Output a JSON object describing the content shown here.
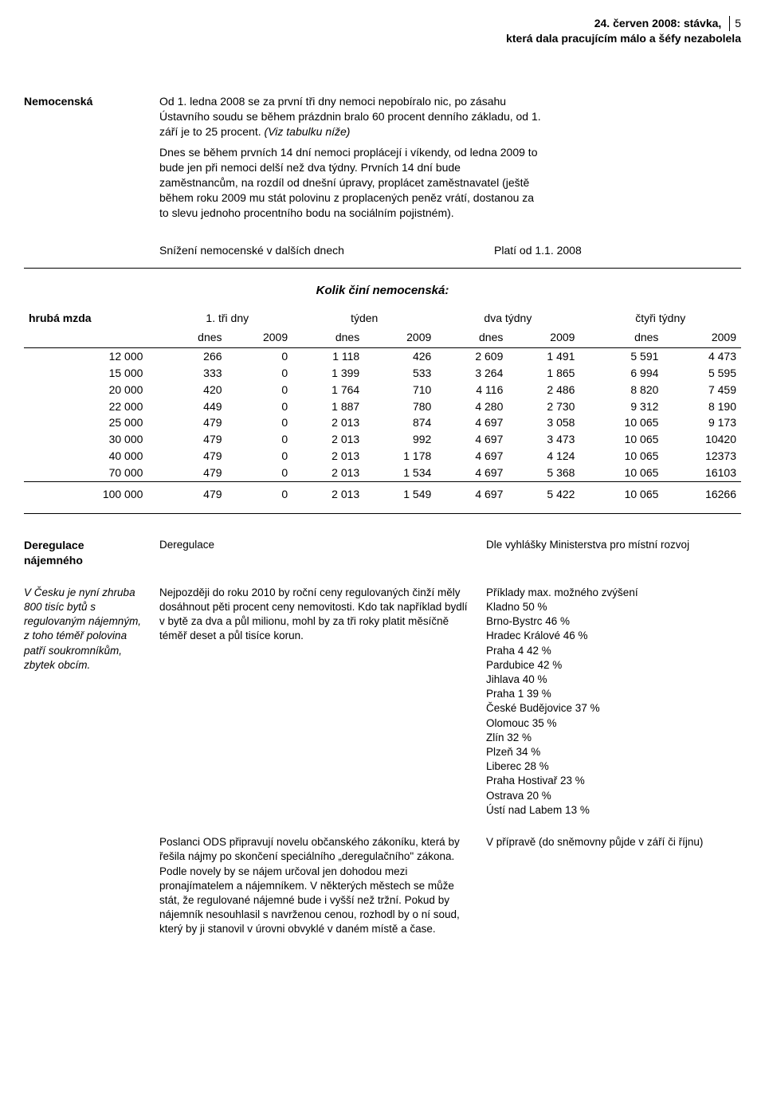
{
  "header": {
    "line1": "24. červen 2008: stávka,",
    "line2": "která dala pracujícím málo a šéfy nezabolela",
    "pageno": "5"
  },
  "nemocenska": {
    "label": "Nemocenská",
    "p1": "Od 1. ledna 2008 se za první tři dny nemoci nepobíralo nic, po zásahu Ústavního soudu se během prázdnin bralo 60 procent denního základu, od 1. září je to 25 procent. ",
    "p1_ital": "(Viz tabulku níže)",
    "p2": "Dnes se během prvních 14 dní nemoci proplácejí i víkendy, od ledna 2009 to bude jen při nemoci delší než dva týdny. Prvních 14 dní bude zaměstnancům, na rozdíl od dnešní úpravy, proplácet zaměstnavatel (ještě během roku 2009 mu stát polovinu z proplacených peněz vrátí, dostanou za to slevu jednoho procentního bodu na sociálním pojistném).",
    "snizeni": "Snížení nemocenské v dalších dnech",
    "plati": "Platí od 1.1. 2008"
  },
  "table": {
    "title": "Kolik činí nemocenská:",
    "col_hruba": "hrubá mzda",
    "groups": [
      "1. tři dny",
      "týden",
      "dva týdny",
      "čtyři týdny"
    ],
    "sub": [
      "dnes",
      "2009"
    ],
    "rows": [
      [
        "12 000",
        "266",
        "0",
        "1 118",
        "426",
        "2 609",
        "1 491",
        "5 591",
        "4 473"
      ],
      [
        "15 000",
        "333",
        "0",
        "1 399",
        "533",
        "3 264",
        "1 865",
        "6 994",
        "5 595"
      ],
      [
        "20 000",
        "420",
        "0",
        "1 764",
        "710",
        "4 116",
        "2 486",
        "8 820",
        "7 459"
      ],
      [
        "22 000",
        "449",
        "0",
        "1 887",
        "780",
        "4 280",
        "2 730",
        "9 312",
        "8 190"
      ],
      [
        "25 000",
        "479",
        "0",
        "2 013",
        "874",
        "4 697",
        "3 058",
        "10 065",
        "9 173"
      ],
      [
        "30 000",
        "479",
        "0",
        "2 013",
        "992",
        "4 697",
        "3 473",
        "10 065",
        "10420"
      ],
      [
        "40 000",
        "479",
        "0",
        "2 013",
        "1 178",
        "4 697",
        "4 124",
        "10 065",
        "12373"
      ],
      [
        "70 000",
        "479",
        "0",
        "2 013",
        "1 534",
        "4 697",
        "5 368",
        "10 065",
        "16103"
      ]
    ],
    "lastrow": [
      "100 000",
      "479",
      "0",
      "2 013",
      "1 549",
      "4 697",
      "5 422",
      "10 065",
      "16266"
    ]
  },
  "dereg": {
    "title": "Deregulace nájemného",
    "col2_heading": "Deregulace",
    "context": "V Česku je nyní zhruba 800 tisíc bytů s regulovaným nájemným, z toho téměř polovina patří soukromníkům, zbytek obcím.",
    "body1": "Nejpozději do roku 2010 by roční ceny regulovaných činží měly dosáhnout pěti procent ceny nemovitosti. Kdo tak například bydlí v bytě za dva a půl milionu, mohl by za tři roky platit měsíčně téměř deset a půl tisíce korun.",
    "body2": "Poslanci ODS připravují novelu občanského zákoníku, která  by řešila nájmy po skončení speciálního „deregulačního\" zákona.\nPodle novely by se nájem určoval jen dohodou mezi pronajímatelem a nájemníkem. V některých městech se může stát, že regulované nájemné bude i vyšší než tržní. Pokud by nájemník nesouhlasil s navrženou cenou, rozhodl by o ní soud, který by ji stanovil v úrovni obvyklé v daném místě a čase.",
    "col3_note1": "Dle vyhlášky Ministerstva pro místní rozvoj",
    "examples_hdr": "Příklady max. možného zvýšení",
    "examples": [
      "Kladno  50 %",
      "Brno-Bystrc  46 %",
      "Hradec Králové  46 %",
      "Praha 4  42 %",
      "Pardubice  42 %",
      "Jihlava  40 %",
      "Praha 1  39 %",
      "České Budějovice  37 %",
      "Olomouc  35 %",
      "Zlín  32 %",
      "Plzeň  34 %",
      "Liberec  28 %",
      "Praha Hostivař  23 %",
      "Ostrava  20 %",
      "Ústí nad Labem  13 %"
    ],
    "col3_note2": "V přípravě (do sněmovny půjde v září či říjnu)"
  }
}
